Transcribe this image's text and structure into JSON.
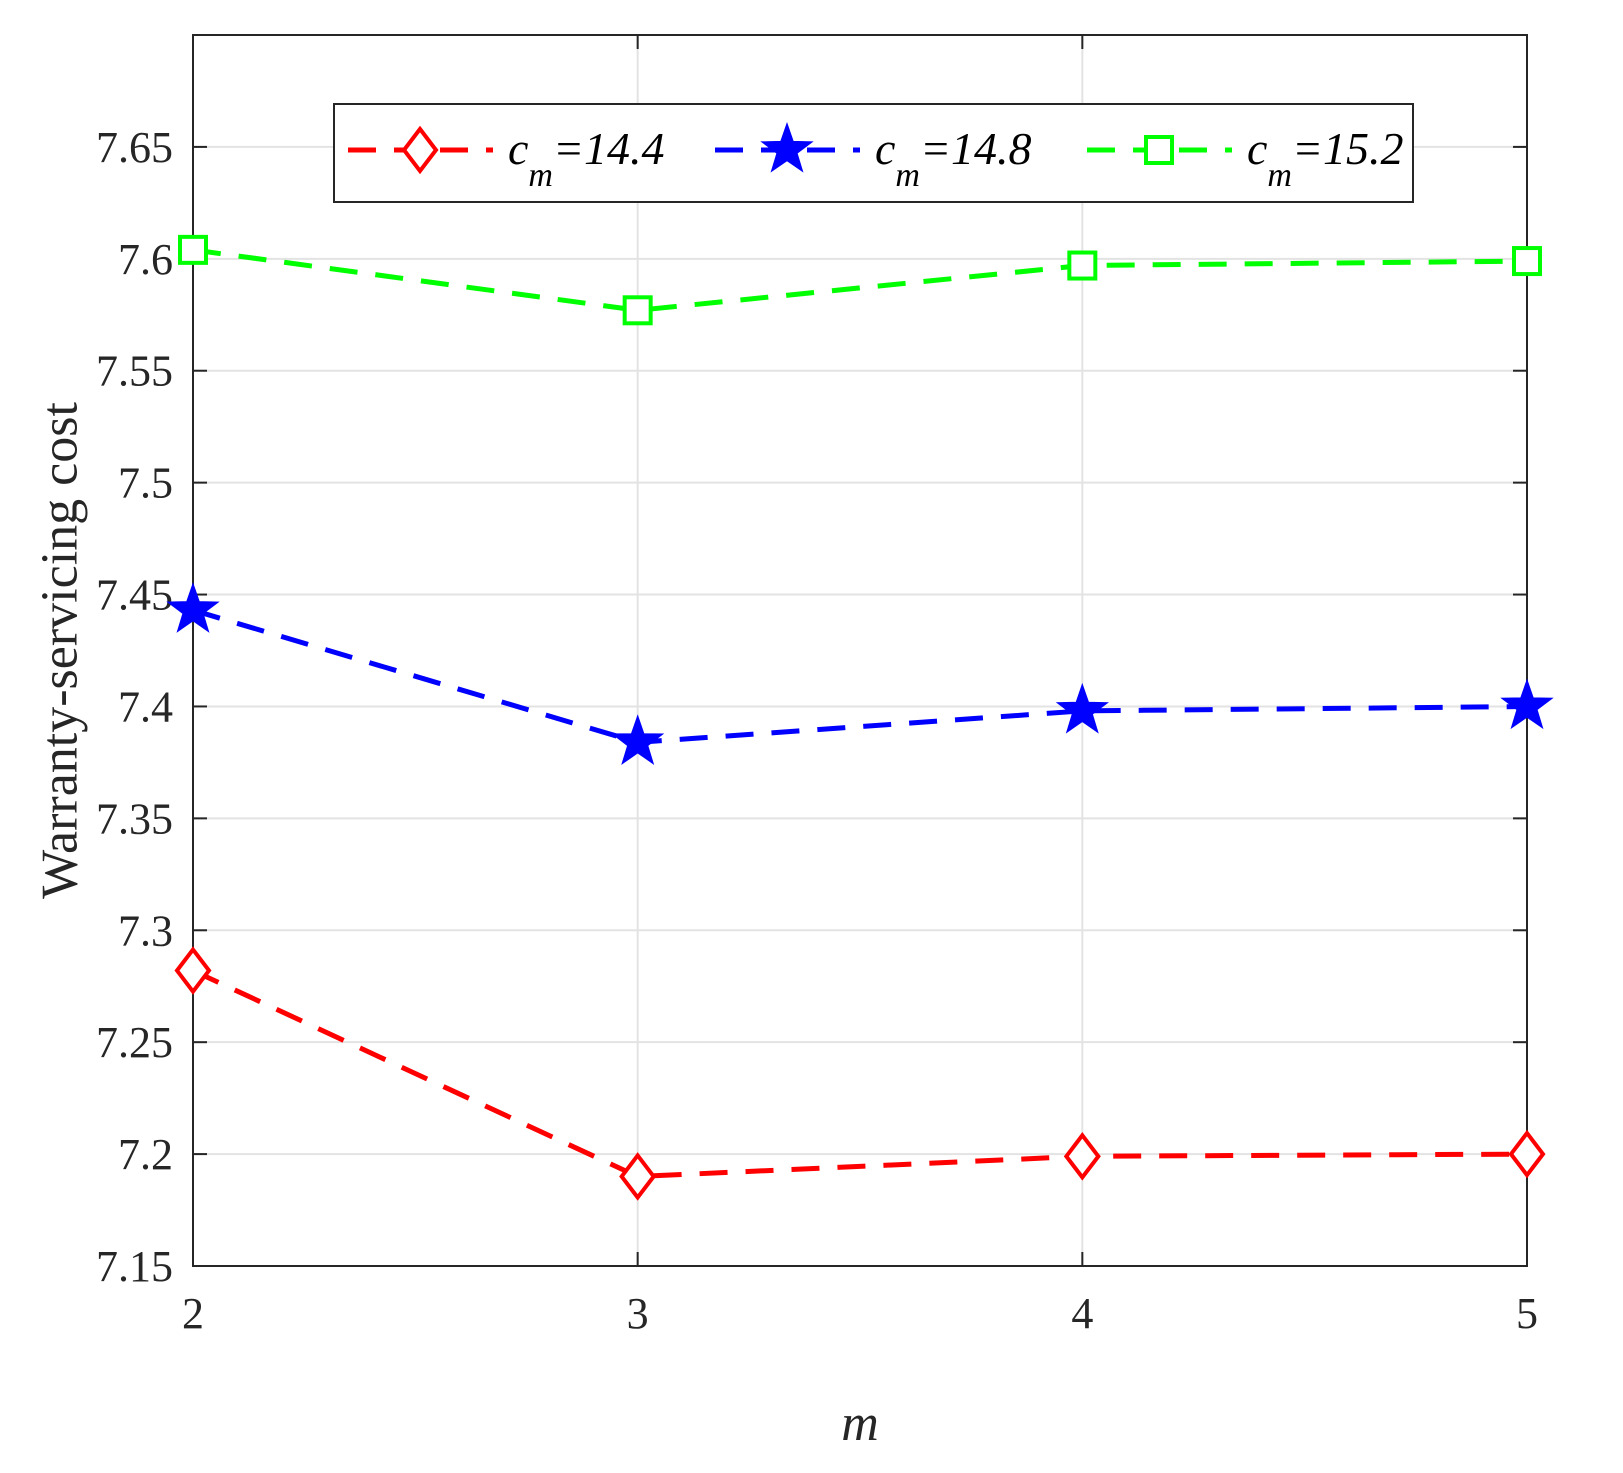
{
  "chart_data": {
    "type": "line",
    "x": [
      2,
      3,
      4,
      5
    ],
    "xlabel": "m",
    "ylabel": "Warranty-servicing cost",
    "xlim": [
      2,
      5
    ],
    "ylim": [
      7.15,
      7.7
    ],
    "xticks": [
      "2",
      "3",
      "4",
      "5"
    ],
    "yticks": [
      "7.15",
      "7.2",
      "7.25",
      "7.3",
      "7.35",
      "7.4",
      "7.45",
      "7.5",
      "7.55",
      "7.6",
      "7.65"
    ],
    "grid": true,
    "legend_position": "top",
    "series": [
      {
        "name": "c_m=14.4",
        "base": "c",
        "sub": "m",
        "rest": "=14.4",
        "color": "#ff0000",
        "marker": "diamond",
        "values": [
          7.282,
          7.19,
          7.199,
          7.2
        ]
      },
      {
        "name": "c_m=14.8",
        "base": "c",
        "sub": "m",
        "rest": "=14.8",
        "color": "#0000ff",
        "marker": "star",
        "values": [
          7.443,
          7.384,
          7.398,
          7.4
        ]
      },
      {
        "name": "c_m=15.2",
        "base": "c",
        "sub": "m",
        "rest": "=15.2",
        "color": "#00ff00",
        "marker": "square",
        "values": [
          7.604,
          7.577,
          7.597,
          7.599
        ]
      }
    ]
  }
}
